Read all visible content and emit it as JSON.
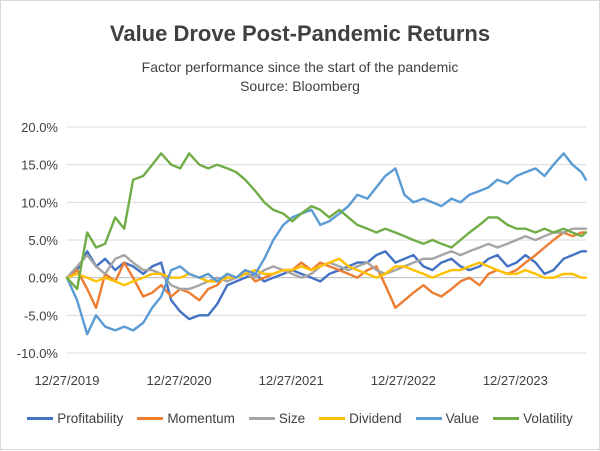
{
  "chart_data": {
    "type": "line",
    "title": "Value Drove Post-Pandemic Returns",
    "subtitle": "Factor performance since the start of the pandemic",
    "source": "Source: Bloomberg",
    "xlabel": "",
    "ylabel": "",
    "x_ticks": [
      "12/27/2019",
      "12/27/2020",
      "12/27/2021",
      "12/27/2022",
      "12/27/2023"
    ],
    "y_ticks": [
      "-10.0%",
      "-5.0%",
      "0.0%",
      "5.0%",
      "10.0%",
      "15.0%",
      "20.0%"
    ],
    "ylim": [
      -10,
      20
    ],
    "xlim": [
      2019.99,
      2024.62
    ],
    "grid": "horizontal",
    "legend_position": "bottom",
    "x": [
      2019.99,
      2020.08,
      2020.17,
      2020.25,
      2020.33,
      2020.42,
      2020.5,
      2020.58,
      2020.67,
      2020.75,
      2020.83,
      2020.92,
      2021.0,
      2021.08,
      2021.17,
      2021.25,
      2021.33,
      2021.42,
      2021.5,
      2021.58,
      2021.67,
      2021.75,
      2021.83,
      2021.92,
      2022.0,
      2022.08,
      2022.17,
      2022.25,
      2022.33,
      2022.42,
      2022.5,
      2022.58,
      2022.67,
      2022.75,
      2022.83,
      2022.92,
      2023.0,
      2023.08,
      2023.17,
      2023.25,
      2023.33,
      2023.42,
      2023.5,
      2023.58,
      2023.67,
      2023.75,
      2023.83,
      2023.92,
      2024.0,
      2024.08,
      2024.17,
      2024.25,
      2024.33,
      2024.42,
      2024.5,
      2024.58,
      2024.62
    ],
    "series": [
      {
        "name": "Profitability",
        "color": "#4472c4",
        "values": [
          0.0,
          1.0,
          3.5,
          1.5,
          2.5,
          1.0,
          2.0,
          1.5,
          0.5,
          1.5,
          2.0,
          -3.0,
          -4.5,
          -5.5,
          -5.0,
          -5.0,
          -3.5,
          -1.0,
          -0.5,
          0.0,
          0.5,
          -0.5,
          0.0,
          0.5,
          1.0,
          0.5,
          0.0,
          -0.5,
          0.5,
          1.0,
          1.5,
          2.0,
          2.0,
          3.0,
          3.5,
          2.0,
          2.5,
          3.0,
          1.5,
          1.0,
          2.0,
          2.5,
          1.5,
          1.0,
          1.5,
          2.5,
          3.0,
          1.5,
          2.0,
          3.0,
          2.0,
          0.5,
          1.0,
          2.5,
          3.0,
          3.5,
          3.5
        ]
      },
      {
        "name": "Momentum",
        "color": "#ed7d31",
        "values": [
          0.0,
          1.0,
          -1.5,
          -4.0,
          0.5,
          -0.5,
          2.0,
          0.0,
          -2.5,
          -2.0,
          -1.0,
          -2.5,
          -1.5,
          -2.0,
          -3.0,
          -1.5,
          -1.0,
          0.5,
          0.0,
          1.0,
          -0.5,
          0.0,
          0.5,
          1.0,
          1.0,
          2.0,
          1.0,
          2.0,
          1.5,
          1.0,
          0.5,
          0.0,
          1.0,
          1.5,
          -1.0,
          -4.0,
          -3.0,
          -2.0,
          -1.0,
          -2.0,
          -2.5,
          -1.5,
          -0.5,
          0.0,
          -1.0,
          0.5,
          1.0,
          0.5,
          1.0,
          2.0,
          3.0,
          4.0,
          5.0,
          6.0,
          5.5,
          6.0,
          6.0
        ]
      },
      {
        "name": "Size",
        "color": "#a5a5a5",
        "values": [
          0.0,
          1.5,
          3.0,
          1.5,
          0.5,
          2.5,
          3.0,
          2.0,
          1.0,
          1.0,
          0.5,
          -1.0,
          -1.5,
          -1.5,
          -1.0,
          -0.5,
          0.0,
          -0.5,
          0.0,
          0.5,
          0.0,
          1.0,
          1.5,
          1.0,
          0.5,
          0.0,
          0.5,
          1.5,
          2.0,
          1.5,
          1.0,
          1.5,
          2.0,
          1.0,
          0.5,
          1.0,
          1.5,
          2.0,
          2.5,
          2.5,
          3.0,
          3.5,
          3.0,
          3.5,
          4.0,
          4.5,
          4.0,
          4.5,
          5.0,
          5.5,
          5.0,
          5.5,
          6.0,
          6.0,
          6.5,
          6.5,
          6.5
        ]
      },
      {
        "name": "Dividend",
        "color": "#ffc000",
        "values": [
          0.0,
          0.5,
          0.0,
          -0.5,
          0.0,
          -0.5,
          -1.0,
          -0.5,
          0.0,
          0.5,
          0.5,
          0.0,
          0.0,
          0.5,
          0.0,
          -0.5,
          -0.5,
          0.0,
          0.0,
          0.5,
          1.0,
          0.5,
          0.5,
          1.0,
          1.0,
          1.5,
          1.0,
          1.5,
          2.0,
          2.5,
          1.5,
          1.0,
          0.5,
          0.0,
          0.5,
          1.5,
          1.5,
          1.0,
          0.5,
          0.0,
          0.5,
          1.0,
          1.0,
          1.5,
          2.0,
          1.5,
          1.0,
          0.5,
          0.5,
          1.0,
          0.5,
          0.0,
          0.0,
          0.5,
          0.5,
          0.0,
          0.0
        ]
      },
      {
        "name": "Value",
        "color": "#5b9bd5",
        "values": [
          0.0,
          -3.0,
          -7.5,
          -5.0,
          -6.5,
          -7.0,
          -6.5,
          -7.0,
          -6.0,
          -4.0,
          -2.5,
          1.0,
          1.5,
          0.5,
          0.0,
          0.5,
          -0.5,
          0.5,
          0.0,
          1.0,
          0.5,
          2.5,
          5.0,
          7.0,
          8.0,
          8.5,
          9.0,
          7.0,
          7.5,
          8.5,
          9.5,
          11.0,
          10.5,
          12.0,
          13.5,
          14.5,
          11.0,
          10.0,
          10.5,
          10.0,
          9.5,
          10.5,
          10.0,
          11.0,
          11.5,
          12.0,
          13.0,
          12.5,
          13.5,
          14.0,
          14.5,
          13.5,
          15.0,
          16.5,
          15.0,
          14.0,
          13.0
        ]
      },
      {
        "name": "Volatility",
        "color": "#70ad47",
        "values": [
          0.0,
          -1.5,
          6.0,
          4.0,
          4.5,
          8.0,
          6.5,
          13.0,
          13.5,
          15.0,
          16.5,
          15.0,
          14.5,
          16.5,
          15.0,
          14.5,
          15.0,
          14.5,
          14.0,
          13.0,
          11.5,
          10.0,
          9.0,
          8.5,
          7.5,
          8.5,
          9.5,
          9.0,
          8.0,
          9.0,
          8.0,
          7.0,
          6.5,
          6.0,
          6.5,
          6.0,
          5.5,
          5.0,
          4.5,
          5.0,
          4.5,
          4.0,
          5.0,
          6.0,
          7.0,
          8.0,
          8.0,
          7.0,
          6.5,
          6.5,
          6.0,
          6.5,
          6.0,
          6.5,
          6.0,
          5.5,
          6.0
        ]
      }
    ]
  }
}
